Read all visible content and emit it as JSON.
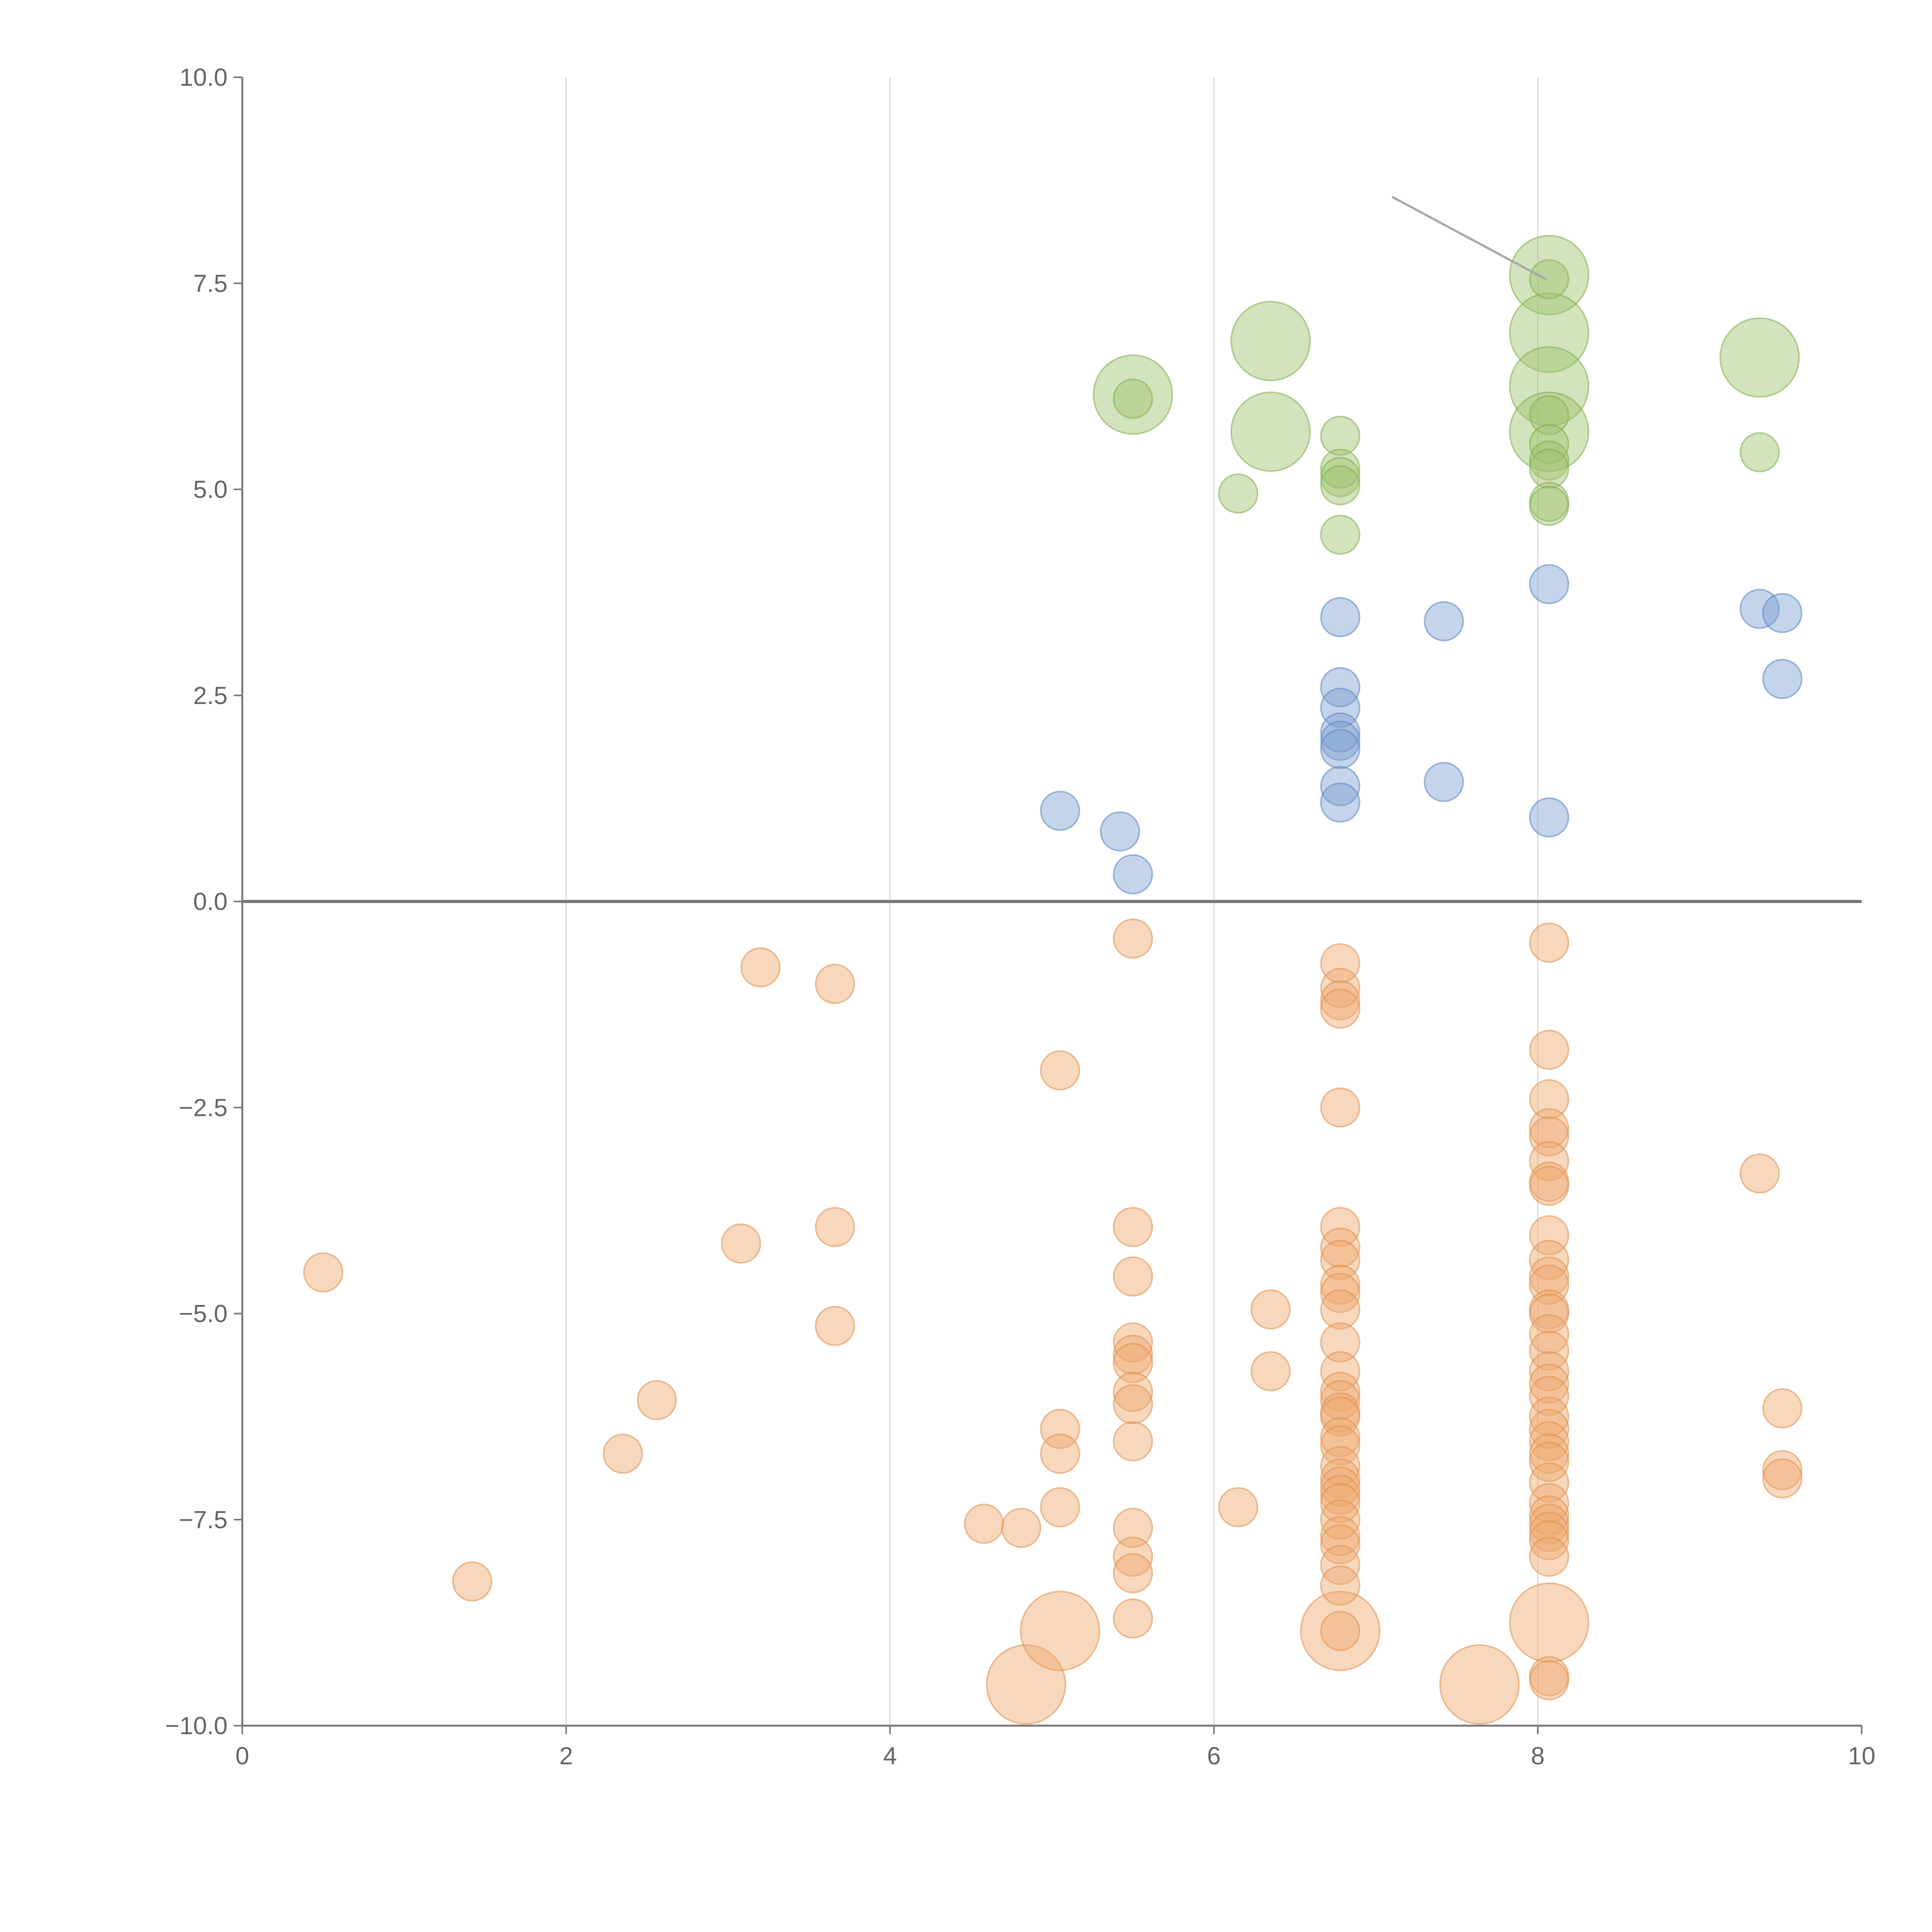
{
  "chart_data": {
    "type": "scatter",
    "xlim": [
      0,
      10
    ],
    "ylim": [
      -10,
      10
    ],
    "x_ticks": [
      "0",
      "2",
      "4",
      "6",
      "8",
      "10"
    ],
    "y_ticks": [
      "10.0",
      "7.5",
      "5.0",
      "2.5",
      "0.0",
      "−2.5",
      "−5.0",
      "−7.5",
      "−10.0"
    ],
    "grid": "vertical",
    "legend": "none",
    "series": [
      {
        "color": "#9dc26d",
        "stroke": "#7fae4a",
        "points": [
          [
            5.5,
            6.15,
            3
          ],
          [
            5.5,
            6.1,
            1
          ],
          [
            6.35,
            6.8,
            3
          ],
          [
            6.35,
            5.7,
            3
          ],
          [
            6.15,
            4.95,
            1
          ],
          [
            6.78,
            5.65,
            1
          ],
          [
            6.78,
            5.25,
            1
          ],
          [
            6.78,
            5.15,
            1
          ],
          [
            6.78,
            5.05,
            1
          ],
          [
            6.78,
            4.45,
            1
          ],
          [
            8.07,
            7.6,
            3
          ],
          [
            8.07,
            7.55,
            1
          ],
          [
            8.07,
            6.9,
            3
          ],
          [
            8.07,
            6.25,
            3
          ],
          [
            8.07,
            5.7,
            3
          ],
          [
            8.07,
            5.9,
            1
          ],
          [
            8.07,
            5.55,
            1
          ],
          [
            8.07,
            5.35,
            1
          ],
          [
            8.07,
            5.25,
            1
          ],
          [
            8.07,
            4.85,
            1
          ],
          [
            8.07,
            4.8,
            1
          ],
          [
            9.37,
            6.6,
            3
          ],
          [
            9.37,
            5.45,
            1
          ]
        ]
      },
      {
        "color": "#7c9fd0",
        "stroke": "#5b83c0",
        "points": [
          [
            5.05,
            1.1,
            1
          ],
          [
            5.42,
            0.85,
            1
          ],
          [
            5.5,
            0.33,
            1
          ],
          [
            6.78,
            3.45,
            1
          ],
          [
            6.78,
            2.6,
            1
          ],
          [
            6.78,
            2.35,
            1
          ],
          [
            6.78,
            2.05,
            1
          ],
          [
            6.78,
            1.95,
            1
          ],
          [
            6.78,
            1.85,
            1
          ],
          [
            6.78,
            1.4,
            1
          ],
          [
            6.78,
            1.2,
            1
          ],
          [
            7.42,
            3.4,
            1
          ],
          [
            7.42,
            1.45,
            1
          ],
          [
            8.07,
            3.85,
            1
          ],
          [
            8.07,
            1.02,
            1
          ],
          [
            9.37,
            3.55,
            1
          ],
          [
            9.51,
            3.5,
            1
          ],
          [
            9.51,
            2.7,
            1
          ]
        ]
      },
      {
        "color": "#eda96d",
        "stroke": "#de8f4e",
        "points": [
          [
            0.5,
            -4.5,
            1
          ],
          [
            1.42,
            -8.25,
            1
          ],
          [
            2.35,
            -6.7,
            1
          ],
          [
            2.56,
            -6.05,
            1
          ],
          [
            3.08,
            -4.15,
            1
          ],
          [
            3.2,
            -0.8,
            1
          ],
          [
            3.66,
            -1.0,
            1
          ],
          [
            3.66,
            -3.95,
            1
          ],
          [
            3.66,
            -5.15,
            1
          ],
          [
            4.58,
            -7.55,
            1
          ],
          [
            4.81,
            -7.6,
            1
          ],
          [
            4.84,
            -9.5,
            3
          ],
          [
            5.05,
            -2.05,
            1
          ],
          [
            5.05,
            -6.4,
            1
          ],
          [
            5.05,
            -6.7,
            1
          ],
          [
            5.05,
            -7.35,
            1
          ],
          [
            5.05,
            -8.85,
            3
          ],
          [
            5.5,
            -0.45,
            1
          ],
          [
            5.5,
            -3.95,
            1
          ],
          [
            5.5,
            -4.55,
            1
          ],
          [
            5.5,
            -5.35,
            1
          ],
          [
            5.5,
            -5.5,
            1
          ],
          [
            5.5,
            -5.6,
            1
          ],
          [
            5.5,
            -5.95,
            1
          ],
          [
            5.5,
            -6.1,
            1
          ],
          [
            5.5,
            -6.55,
            1
          ],
          [
            5.5,
            -7.6,
            1
          ],
          [
            5.5,
            -7.95,
            1
          ],
          [
            5.5,
            -8.15,
            1
          ],
          [
            5.5,
            -8.7,
            1
          ],
          [
            6.15,
            -7.35,
            1
          ],
          [
            6.35,
            -4.95,
            1
          ],
          [
            6.35,
            -5.7,
            1
          ],
          [
            6.78,
            -0.75,
            1
          ],
          [
            6.78,
            -1.05,
            1
          ],
          [
            6.78,
            -1.2,
            1
          ],
          [
            6.78,
            -1.3,
            1
          ],
          [
            6.78,
            -2.5,
            1
          ],
          [
            6.78,
            -3.95,
            1
          ],
          [
            6.78,
            -4.2,
            1
          ],
          [
            6.78,
            -4.35,
            1
          ],
          [
            6.78,
            -4.65,
            1
          ],
          [
            6.78,
            -4.75,
            1
          ],
          [
            6.78,
            -4.95,
            1
          ],
          [
            6.78,
            -5.35,
            1
          ],
          [
            6.78,
            -5.7,
            1
          ],
          [
            6.78,
            -5.95,
            1
          ],
          [
            6.78,
            -6.05,
            1
          ],
          [
            6.78,
            -6.2,
            1
          ],
          [
            6.78,
            -6.25,
            1
          ],
          [
            6.78,
            -6.5,
            1
          ],
          [
            6.78,
            -6.6,
            1
          ],
          [
            6.78,
            -6.85,
            1
          ],
          [
            6.78,
            -7.0,
            1
          ],
          [
            6.78,
            -7.1,
            1
          ],
          [
            6.78,
            -7.2,
            1
          ],
          [
            6.78,
            -7.3,
            1
          ],
          [
            6.78,
            -7.5,
            1
          ],
          [
            6.78,
            -7.7,
            1
          ],
          [
            6.78,
            -7.8,
            1
          ],
          [
            6.78,
            -8.05,
            1
          ],
          [
            6.78,
            -8.3,
            1
          ],
          [
            6.78,
            -8.85,
            3
          ],
          [
            6.78,
            -8.85,
            1
          ],
          [
            7.64,
            -9.5,
            3
          ],
          [
            8.07,
            -0.5,
            1
          ],
          [
            8.07,
            -1.8,
            1
          ],
          [
            8.07,
            -2.4,
            1
          ],
          [
            8.07,
            -2.75,
            1
          ],
          [
            8.07,
            -2.85,
            1
          ],
          [
            8.07,
            -3.15,
            1
          ],
          [
            8.07,
            -3.4,
            1
          ],
          [
            8.07,
            -3.45,
            1
          ],
          [
            8.07,
            -4.05,
            1
          ],
          [
            8.07,
            -4.35,
            1
          ],
          [
            8.07,
            -4.55,
            1
          ],
          [
            8.07,
            -4.65,
            1
          ],
          [
            8.07,
            -4.95,
            1
          ],
          [
            8.07,
            -5.0,
            1
          ],
          [
            8.07,
            -5.25,
            1
          ],
          [
            8.07,
            -5.45,
            1
          ],
          [
            8.07,
            -5.7,
            1
          ],
          [
            8.07,
            -5.85,
            1
          ],
          [
            8.07,
            -6.0,
            1
          ],
          [
            8.07,
            -6.25,
            1
          ],
          [
            8.07,
            -6.4,
            1
          ],
          [
            8.07,
            -6.55,
            1
          ],
          [
            8.07,
            -6.7,
            1
          ],
          [
            8.07,
            -6.8,
            1
          ],
          [
            8.07,
            -7.05,
            1
          ],
          [
            8.07,
            -7.3,
            1
          ],
          [
            8.07,
            -7.45,
            1
          ],
          [
            8.07,
            -7.55,
            1
          ],
          [
            8.07,
            -7.65,
            1
          ],
          [
            8.07,
            -7.75,
            1
          ],
          [
            8.07,
            -7.95,
            1
          ],
          [
            8.07,
            -8.75,
            3
          ],
          [
            8.07,
            -9.4,
            1
          ],
          [
            8.07,
            -9.45,
            1
          ],
          [
            9.37,
            -3.3,
            1
          ],
          [
            9.51,
            -6.15,
            1
          ],
          [
            9.51,
            -6.9,
            1
          ],
          [
            9.51,
            -7.0,
            1
          ]
        ]
      }
    ]
  }
}
